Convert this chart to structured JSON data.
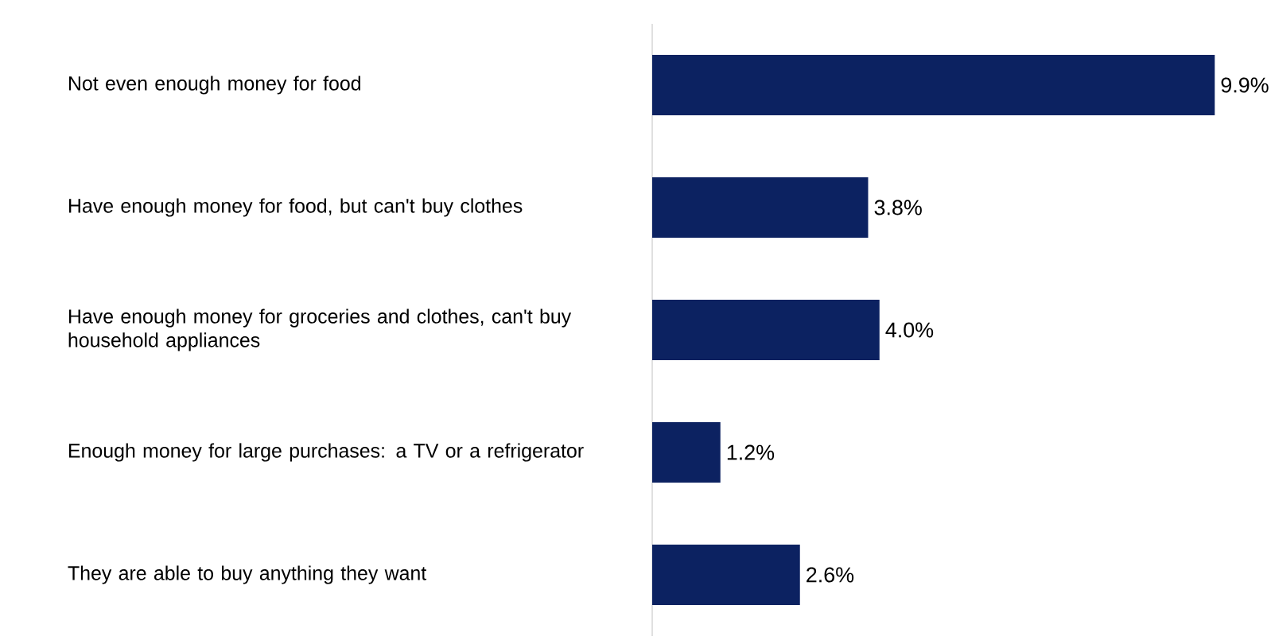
{
  "chart_data": {
    "type": "bar",
    "orientation": "horizontal",
    "categories": [
      "Not even enough money for food",
      "Have enough money for food, but can't buy clothes",
      "Have enough money for groceries and clothes, can't buy household appliances",
      "Enough money for large purchases: a TV or a refrigerator",
      "They are able to buy anything they want"
    ],
    "values": [
      9.9,
      3.8,
      4.0,
      1.2,
      2.6
    ],
    "value_labels": [
      "9.9%",
      "3.8%",
      "4.0%",
      "1.2%",
      "2.6%"
    ],
    "color": "#0c2261"
  }
}
